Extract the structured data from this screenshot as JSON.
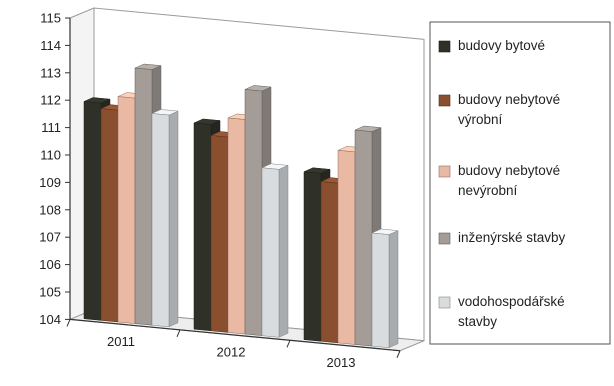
{
  "chart_data": {
    "type": "bar",
    "title": "",
    "xlabel": "",
    "ylabel": "",
    "categories": [
      "2011",
      "2012",
      "2013"
    ],
    "ylim": [
      104,
      115
    ],
    "yticks": [
      104,
      105,
      106,
      107,
      108,
      109,
      110,
      111,
      112,
      113,
      114,
      115
    ],
    "grid": false,
    "legend_position": "right",
    "series": [
      {
        "name": "budovy bytové",
        "color": "#2f3129",
        "values": [
          112.0,
          111.6,
          110.2
        ]
      },
      {
        "name": "budovy nebytové výrobní",
        "color": "#8a4f2e",
        "values": [
          111.8,
          111.2,
          109.9
        ]
      },
      {
        "name": "budovy nebytové nevýrobní",
        "color": "#e9b9a4",
        "values": [
          112.3,
          111.9,
          111.1
        ]
      },
      {
        "name": "inženýrské stavby",
        "color": "#a39c97",
        "values": [
          113.4,
          113.0,
          111.9
        ]
      },
      {
        "name": "vodohospodářské stavby",
        "color": "#d9dcdf",
        "values": [
          111.8,
          110.2,
          108.2
        ]
      }
    ],
    "legend": [
      {
        "lines": [
          "budovy bytové"
        ]
      },
      {
        "lines": [
          "budovy nebytové",
          "výrobní"
        ]
      },
      {
        "lines": [
          "budovy nebytové",
          "nevýrobní"
        ]
      },
      {
        "lines": [
          "inženýrské stavby"
        ]
      },
      {
        "lines": [
          "vodohospodářské",
          "stavby"
        ]
      }
    ]
  }
}
